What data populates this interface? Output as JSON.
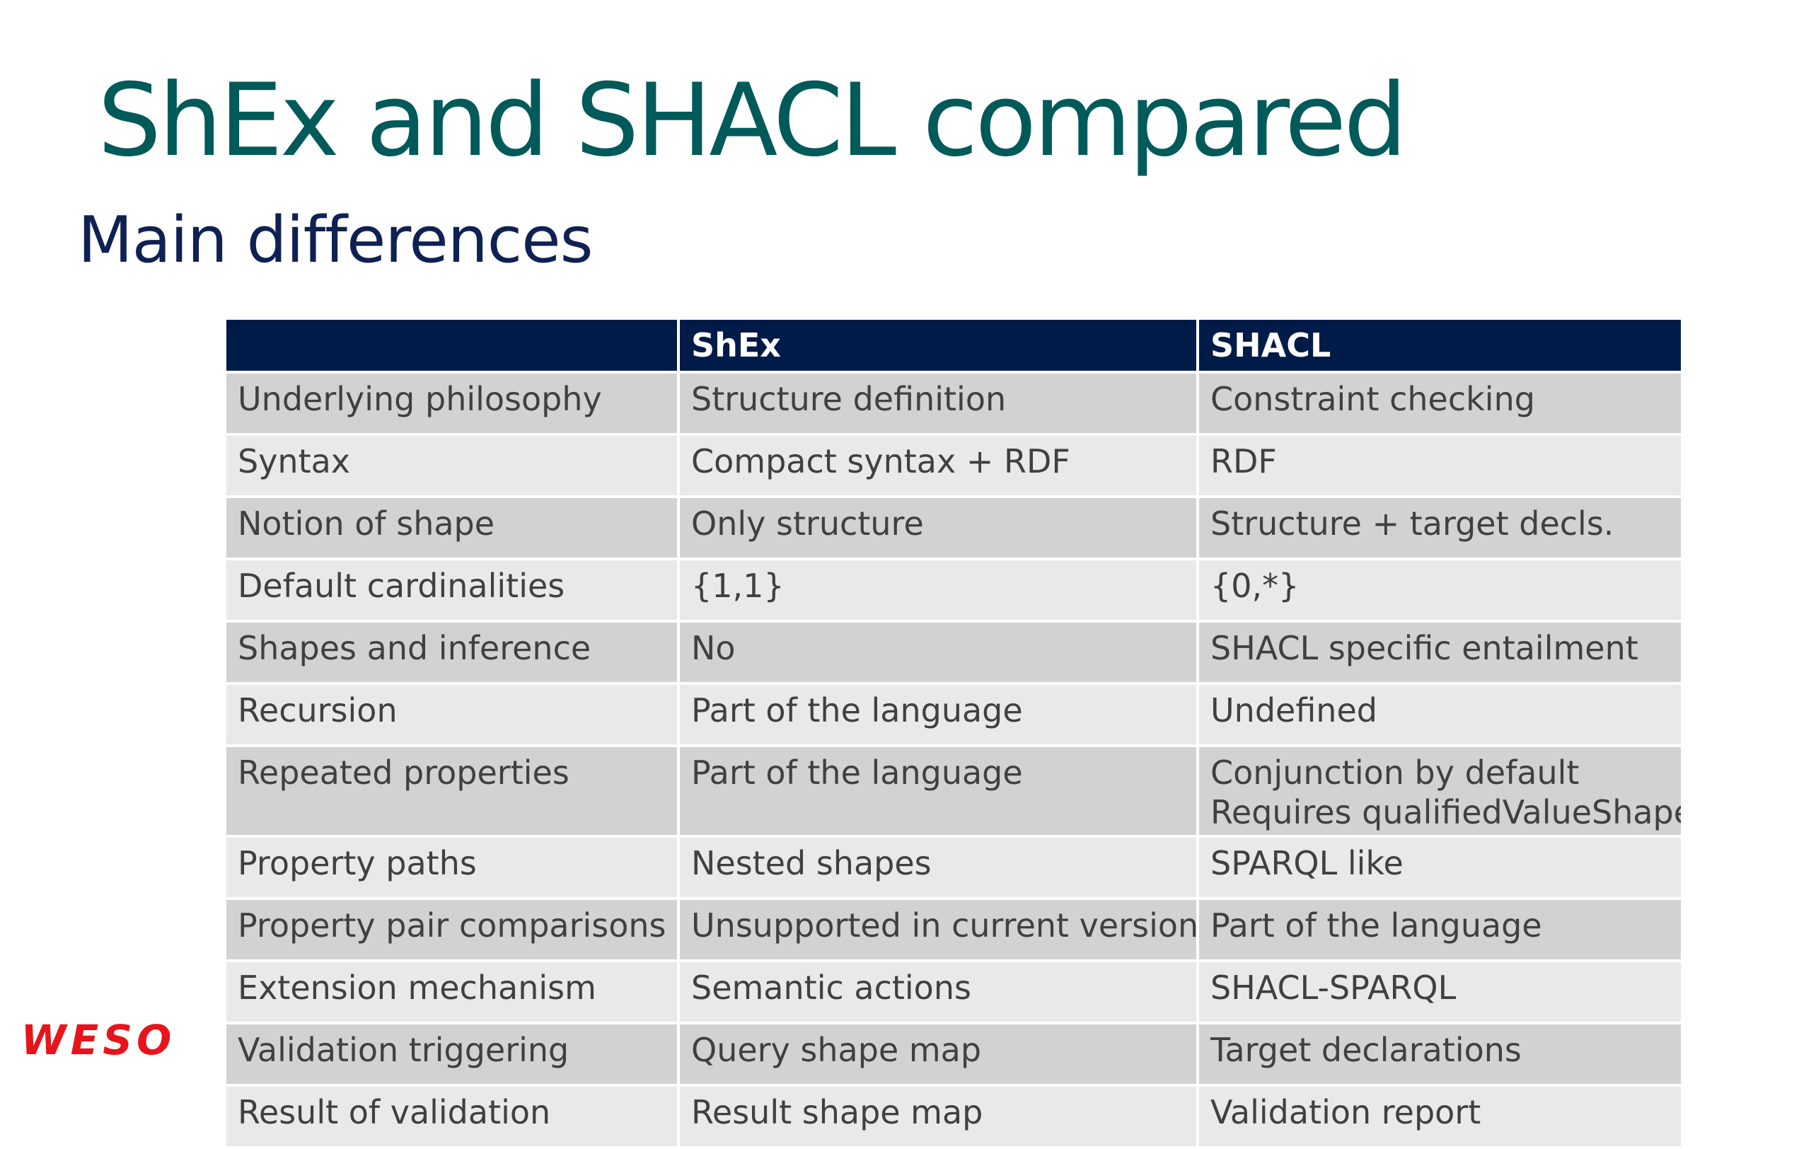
{
  "slide": {
    "title": "ShEx and SHACL compared",
    "subtitle": "Main differences"
  },
  "table": {
    "headers": [
      "",
      "ShEx",
      "SHACL"
    ],
    "rows": [
      {
        "feature": "Underlying philosophy",
        "shex": "Structure definition",
        "shacl": [
          "Constraint checking"
        ]
      },
      {
        "feature": "Syntax",
        "shex": "Compact syntax + RDF",
        "shacl": [
          "RDF"
        ]
      },
      {
        "feature": "Notion of shape",
        "shex": "Only structure",
        "shacl": [
          "Structure + target decls."
        ]
      },
      {
        "feature": "Default cardinalities",
        "shex": "{1,1}",
        "shacl": [
          "{0,*}"
        ]
      },
      {
        "feature": "Shapes and inference",
        "shex": "No",
        "shacl": [
          "SHACL specific entailment"
        ]
      },
      {
        "feature": "Recursion",
        "shex": "Part of the language",
        "shacl": [
          "Undefined"
        ]
      },
      {
        "feature": "Repeated properties",
        "shex": "Part of the language",
        "shacl": [
          "Conjunction by default",
          "Requires qualifiedValueShapes"
        ]
      },
      {
        "feature": "Property paths",
        "shex": "Nested shapes",
        "shacl": [
          "SPARQL like"
        ]
      },
      {
        "feature": "Property pair comparisons",
        "shex": "Unsupported in current version",
        "shacl": [
          "Part of the language"
        ]
      },
      {
        "feature": "Extension mechanism",
        "shex": "Semantic actions",
        "shacl": [
          "SHACL-SPARQL"
        ]
      },
      {
        "feature": "Validation triggering",
        "shex": "Query shape map",
        "shacl": [
          "Target declarations"
        ]
      },
      {
        "feature": "Result of validation",
        "shex": "Result shape map",
        "shacl": [
          "Validation report"
        ]
      }
    ]
  },
  "logo": {
    "text": "WESO",
    "color": "#e8141b"
  },
  "colors": {
    "title": "#005a5a",
    "subtitle": "#0f2153",
    "header_bg": "#001b47",
    "row_dark": "#d2d2d2",
    "row_light": "#e9e9e9"
  }
}
